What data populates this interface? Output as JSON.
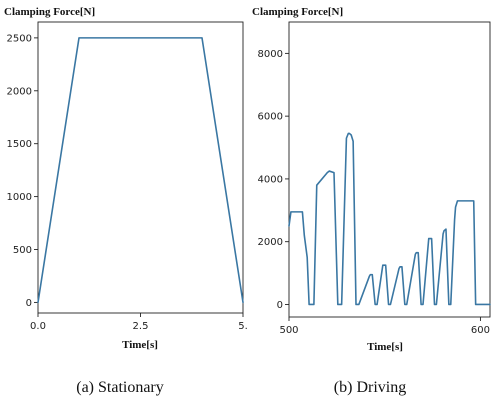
{
  "chart_data": [
    {
      "type": "line",
      "ylabel": "Clamping Force[N]",
      "xlabel": "Time[s]",
      "caption": "(a) Stationary",
      "xlim": [
        0,
        5
      ],
      "ylim": [
        -100,
        2650
      ],
      "xticks": [
        0.0,
        2.5,
        5.0
      ],
      "xtick_labels": [
        "0.0",
        "2.5",
        "5."
      ],
      "yticks": [
        0,
        500,
        1000,
        1500,
        2000,
        2500
      ],
      "ytick_labels": [
        "0",
        "500",
        "1000",
        "1500",
        "2000",
        "2500"
      ],
      "grid": false,
      "color": "#3a77a3",
      "x": [
        0.0,
        1.0,
        4.0,
        5.0
      ],
      "y": [
        0,
        2500,
        2500,
        0
      ]
    },
    {
      "type": "line",
      "ylabel": "Clamping Force[N]",
      "xlabel": "Time[s]",
      "caption": "(b) Driving",
      "xlim": [
        500,
        605
      ],
      "ylim": [
        -400,
        9000
      ],
      "xticks": [
        500,
        600
      ],
      "xtick_labels": [
        "500",
        "600"
      ],
      "yticks": [
        0,
        2000,
        4000,
        6000,
        8000
      ],
      "ytick_labels": [
        "0",
        "2000",
        "4000",
        "6000",
        "8000"
      ],
      "grid": false,
      "color": "#3a77a3",
      "x": [
        500,
        501,
        507,
        508,
        509.5,
        510.5,
        512,
        513,
        514.5,
        520,
        521,
        523.5,
        525.5,
        526.5,
        527,
        527.5,
        530,
        531,
        531.5,
        532.5,
        533.5,
        535,
        536,
        536.5,
        542,
        542.5,
        543.5,
        545,
        546,
        549,
        549.5,
        550.5,
        552,
        553,
        557.5,
        558,
        559,
        560.5,
        561.5,
        566,
        566.5,
        567.5,
        569,
        570,
        573,
        573.5,
        574.5,
        576,
        577,
        580.5,
        581,
        582,
        583.5,
        584.5,
        586.5,
        587,
        588,
        589.5,
        590.5,
        596,
        596.5,
        597.5,
        599,
        600,
        602,
        602.5,
        603.5,
        605
      ],
      "y": [
        2500,
        2950,
        2950,
        2200,
        1500,
        0,
        0,
        0,
        3800,
        4200,
        4250,
        4200,
        0,
        0,
        0,
        0,
        5300,
        5450,
        5450,
        5400,
        5200,
        0,
        0,
        0,
        900,
        950,
        950,
        0,
        0,
        1250,
        1250,
        1250,
        0,
        0,
        1150,
        1200,
        1200,
        0,
        0,
        1600,
        1650,
        1650,
        0,
        0,
        2100,
        2100,
        2100,
        0,
        0,
        2250,
        2350,
        2400,
        0,
        0,
        2700,
        3100,
        3300,
        3300,
        3300,
        3300,
        3300,
        0,
        0,
        0,
        0,
        0,
        0,
        0
      ]
    }
  ]
}
